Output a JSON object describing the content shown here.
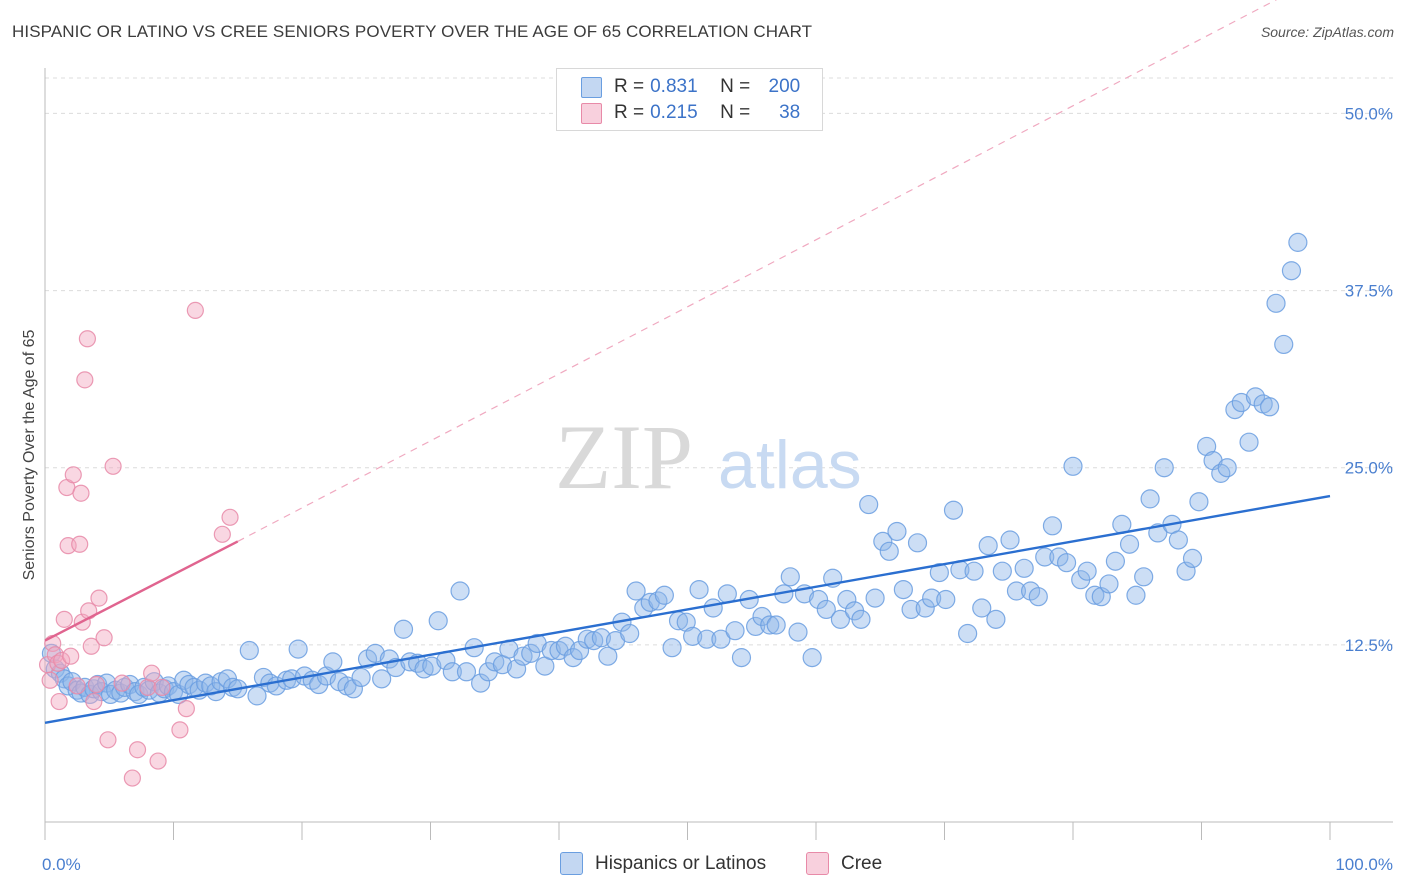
{
  "title": "HISPANIC OR LATINO VS CREE SENIORS POVERTY OVER THE AGE OF 65 CORRELATION CHART",
  "source": "Source: ZipAtlas.com",
  "watermark": {
    "zip": "ZIP",
    "atlas": "atlas"
  },
  "legend": {
    "rows": [
      {
        "r_label": "R = ",
        "r_value": "0.831",
        "n_label": "N = ",
        "n_value": "200",
        "color": "#8fb5e8"
      },
      {
        "r_label": "R = ",
        "r_value": "0.215",
        "n_label": "N = ",
        "n_value": "38",
        "color": "#f2a7bf"
      }
    ]
  },
  "bottom_legend": {
    "series1": "Hispanics or Latinos",
    "series2": "Cree"
  },
  "chart_data": {
    "type": "scatter",
    "title": "HISPANIC OR LATINO VS CREE SENIORS POVERTY OVER THE AGE OF 65 CORRELATION CHART",
    "xlabel": "",
    "ylabel": "Seniors Poverty Over the Age of 65",
    "xlim": [
      0,
      100
    ],
    "ylim": [
      0,
      52.5
    ],
    "x_tick_labels": [
      "0.0%",
      "100.0%"
    ],
    "y_ticks": [
      12.5,
      25.0,
      37.5,
      50.0
    ],
    "y_tick_labels": [
      "12.5%",
      "25.0%",
      "37.5%",
      "50.0%"
    ],
    "series": [
      {
        "name": "Hispanics or Latinos",
        "color": "#8fb5e8",
        "edge": "#6a9ee0",
        "trend": {
          "x0": 0,
          "y0": 7.0,
          "x1": 100,
          "y1": 23.0,
          "color": "#2b6fd0"
        },
        "points": [
          [
            0.5,
            11.9
          ],
          [
            0.8,
            10.8
          ],
          [
            1.2,
            10.5
          ],
          [
            1.5,
            10.1
          ],
          [
            1.8,
            9.6
          ],
          [
            2.1,
            9.9
          ],
          [
            2.5,
            9.3
          ],
          [
            2.8,
            9.1
          ],
          [
            3.1,
            9.5
          ],
          [
            3.5,
            9.0
          ],
          [
            3.8,
            9.4
          ],
          [
            4.1,
            9.7
          ],
          [
            4.4,
            9.2
          ],
          [
            4.8,
            9.8
          ],
          [
            5.1,
            9.0
          ],
          [
            5.5,
            9.3
          ],
          [
            5.9,
            9.1
          ],
          [
            6.2,
            9.5
          ],
          [
            6.6,
            9.7
          ],
          [
            7.0,
            9.2
          ],
          [
            7.3,
            9.0
          ],
          [
            7.7,
            9.5
          ],
          [
            8.1,
            9.3
          ],
          [
            8.5,
            9.9
          ],
          [
            8.9,
            9.1
          ],
          [
            9.3,
            9.4
          ],
          [
            9.6,
            9.6
          ],
          [
            10.0,
            9.2
          ],
          [
            10.4,
            9.0
          ],
          [
            10.8,
            10.0
          ],
          [
            11.2,
            9.7
          ],
          [
            11.6,
            9.5
          ],
          [
            12.0,
            9.3
          ],
          [
            12.5,
            9.8
          ],
          [
            12.9,
            9.6
          ],
          [
            13.3,
            9.2
          ],
          [
            13.7,
            9.9
          ],
          [
            14.2,
            10.1
          ],
          [
            14.6,
            9.5
          ],
          [
            15.0,
            9.4
          ],
          [
            15.9,
            12.1
          ],
          [
            16.5,
            8.9
          ],
          [
            17.0,
            10.2
          ],
          [
            17.5,
            9.8
          ],
          [
            18.0,
            9.6
          ],
          [
            18.8,
            10.0
          ],
          [
            19.2,
            10.1
          ],
          [
            19.7,
            12.2
          ],
          [
            20.2,
            10.3
          ],
          [
            20.8,
            10.0
          ],
          [
            21.3,
            9.7
          ],
          [
            21.9,
            10.3
          ],
          [
            22.4,
            11.3
          ],
          [
            22.9,
            9.9
          ],
          [
            23.5,
            9.6
          ],
          [
            24.0,
            9.4
          ],
          [
            24.6,
            10.2
          ],
          [
            25.1,
            11.5
          ],
          [
            25.7,
            11.9
          ],
          [
            26.2,
            10.1
          ],
          [
            26.8,
            11.5
          ],
          [
            27.3,
            10.9
          ],
          [
            27.9,
            13.6
          ],
          [
            28.4,
            11.3
          ],
          [
            29.0,
            11.2
          ],
          [
            29.5,
            10.8
          ],
          [
            30.1,
            11.0
          ],
          [
            30.6,
            14.2
          ],
          [
            31.2,
            11.4
          ],
          [
            31.7,
            10.6
          ],
          [
            32.3,
            16.3
          ],
          [
            32.8,
            10.6
          ],
          [
            33.4,
            12.3
          ],
          [
            33.9,
            9.8
          ],
          [
            34.5,
            10.6
          ],
          [
            35.0,
            11.3
          ],
          [
            35.6,
            11.1
          ],
          [
            36.1,
            12.2
          ],
          [
            36.7,
            10.8
          ],
          [
            37.2,
            11.7
          ],
          [
            37.8,
            11.9
          ],
          [
            38.3,
            12.6
          ],
          [
            38.9,
            11.0
          ],
          [
            39.4,
            12.1
          ],
          [
            40.0,
            12.1
          ],
          [
            40.5,
            12.4
          ],
          [
            41.1,
            11.6
          ],
          [
            41.6,
            12.1
          ],
          [
            42.2,
            12.9
          ],
          [
            42.7,
            12.8
          ],
          [
            43.3,
            13.0
          ],
          [
            43.8,
            11.7
          ],
          [
            44.4,
            12.8
          ],
          [
            44.9,
            14.1
          ],
          [
            45.5,
            13.3
          ],
          [
            46.0,
            16.3
          ],
          [
            46.6,
            15.1
          ],
          [
            47.1,
            15.5
          ],
          [
            47.7,
            15.6
          ],
          [
            48.2,
            16.0
          ],
          [
            48.8,
            12.3
          ],
          [
            49.3,
            14.2
          ],
          [
            49.9,
            14.1
          ],
          [
            50.4,
            13.1
          ],
          [
            50.9,
            16.4
          ],
          [
            51.5,
            12.9
          ],
          [
            52.0,
            15.1
          ],
          [
            52.6,
            12.9
          ],
          [
            53.1,
            16.1
          ],
          [
            53.7,
            13.5
          ],
          [
            54.2,
            11.6
          ],
          [
            54.8,
            15.7
          ],
          [
            55.3,
            13.8
          ],
          [
            55.8,
            14.5
          ],
          [
            56.4,
            13.9
          ],
          [
            56.9,
            13.9
          ],
          [
            57.5,
            16.1
          ],
          [
            58.0,
            17.3
          ],
          [
            58.6,
            13.4
          ],
          [
            59.1,
            16.1
          ],
          [
            59.7,
            11.6
          ],
          [
            60.2,
            15.7
          ],
          [
            60.8,
            15.0
          ],
          [
            61.3,
            17.2
          ],
          [
            61.9,
            14.3
          ],
          [
            62.4,
            15.7
          ],
          [
            63.0,
            14.9
          ],
          [
            63.5,
            14.3
          ],
          [
            64.1,
            22.4
          ],
          [
            64.6,
            15.8
          ],
          [
            65.2,
            19.8
          ],
          [
            65.7,
            19.1
          ],
          [
            66.3,
            20.5
          ],
          [
            66.8,
            16.4
          ],
          [
            67.4,
            15.0
          ],
          [
            67.9,
            19.7
          ],
          [
            68.5,
            15.1
          ],
          [
            69.0,
            15.8
          ],
          [
            69.6,
            17.6
          ],
          [
            70.1,
            15.7
          ],
          [
            70.7,
            22.0
          ],
          [
            71.2,
            17.8
          ],
          [
            71.8,
            13.3
          ],
          [
            72.3,
            17.7
          ],
          [
            72.9,
            15.1
          ],
          [
            73.4,
            19.5
          ],
          [
            74.0,
            14.3
          ],
          [
            74.5,
            17.7
          ],
          [
            75.1,
            19.9
          ],
          [
            75.6,
            16.3
          ],
          [
            76.2,
            17.9
          ],
          [
            76.7,
            16.3
          ],
          [
            77.3,
            15.9
          ],
          [
            77.8,
            18.7
          ],
          [
            78.4,
            20.9
          ],
          [
            78.9,
            18.7
          ],
          [
            79.5,
            18.3
          ],
          [
            80.0,
            25.1
          ],
          [
            80.6,
            17.1
          ],
          [
            81.1,
            17.7
          ],
          [
            81.7,
            16.0
          ],
          [
            82.2,
            15.9
          ],
          [
            82.8,
            16.8
          ],
          [
            83.3,
            18.4
          ],
          [
            83.8,
            21.0
          ],
          [
            84.4,
            19.6
          ],
          [
            84.9,
            16.0
          ],
          [
            85.5,
            17.3
          ],
          [
            86.0,
            22.8
          ],
          [
            86.6,
            20.4
          ],
          [
            87.1,
            25.0
          ],
          [
            87.7,
            21.0
          ],
          [
            88.2,
            19.9
          ],
          [
            88.8,
            17.7
          ],
          [
            89.3,
            18.6
          ],
          [
            89.8,
            22.6
          ],
          [
            90.4,
            26.5
          ],
          [
            90.9,
            25.5
          ],
          [
            91.5,
            24.6
          ],
          [
            92.0,
            25.0
          ],
          [
            92.6,
            29.1
          ],
          [
            93.1,
            29.6
          ],
          [
            93.7,
            26.8
          ],
          [
            94.2,
            30.0
          ],
          [
            94.8,
            29.5
          ],
          [
            95.3,
            29.3
          ],
          [
            95.8,
            36.6
          ],
          [
            96.4,
            33.7
          ],
          [
            97.0,
            38.9
          ],
          [
            97.5,
            40.9
          ]
        ]
      },
      {
        "name": "Cree",
        "color": "#f2a7bf",
        "edge": "#e88aa8",
        "trend": {
          "x0": 0,
          "y0": 12.8,
          "x1": 15,
          "y1": 19.8,
          "color": "#e0648f"
        },
        "trend_extension": {
          "x0": 15,
          "y0": 19.8,
          "x1": 100,
          "y1": 60.0
        },
        "points": [
          [
            0.2,
            11.1
          ],
          [
            0.4,
            10.0
          ],
          [
            0.6,
            12.6
          ],
          [
            0.8,
            11.8
          ],
          [
            1.0,
            11.2
          ],
          [
            1.1,
            8.5
          ],
          [
            1.3,
            11.4
          ],
          [
            1.5,
            14.3
          ],
          [
            1.7,
            23.6
          ],
          [
            1.8,
            19.5
          ],
          [
            2.0,
            11.7
          ],
          [
            2.2,
            24.5
          ],
          [
            2.5,
            9.6
          ],
          [
            2.7,
            19.6
          ],
          [
            2.8,
            23.2
          ],
          [
            2.9,
            14.1
          ],
          [
            3.1,
            31.2
          ],
          [
            3.3,
            34.1
          ],
          [
            3.4,
            14.9
          ],
          [
            3.6,
            12.4
          ],
          [
            3.8,
            8.5
          ],
          [
            4.0,
            9.7
          ],
          [
            4.2,
            15.8
          ],
          [
            4.6,
            13.0
          ],
          [
            4.9,
            5.8
          ],
          [
            5.3,
            25.1
          ],
          [
            6.0,
            9.8
          ],
          [
            6.8,
            3.1
          ],
          [
            7.2,
            5.1
          ],
          [
            8.0,
            9.5
          ],
          [
            8.3,
            10.5
          ],
          [
            8.8,
            4.3
          ],
          [
            9.1,
            9.5
          ],
          [
            10.5,
            6.5
          ],
          [
            11.0,
            8.0
          ],
          [
            11.7,
            36.1
          ],
          [
            13.8,
            20.3
          ],
          [
            14.4,
            21.5
          ]
        ]
      }
    ]
  }
}
